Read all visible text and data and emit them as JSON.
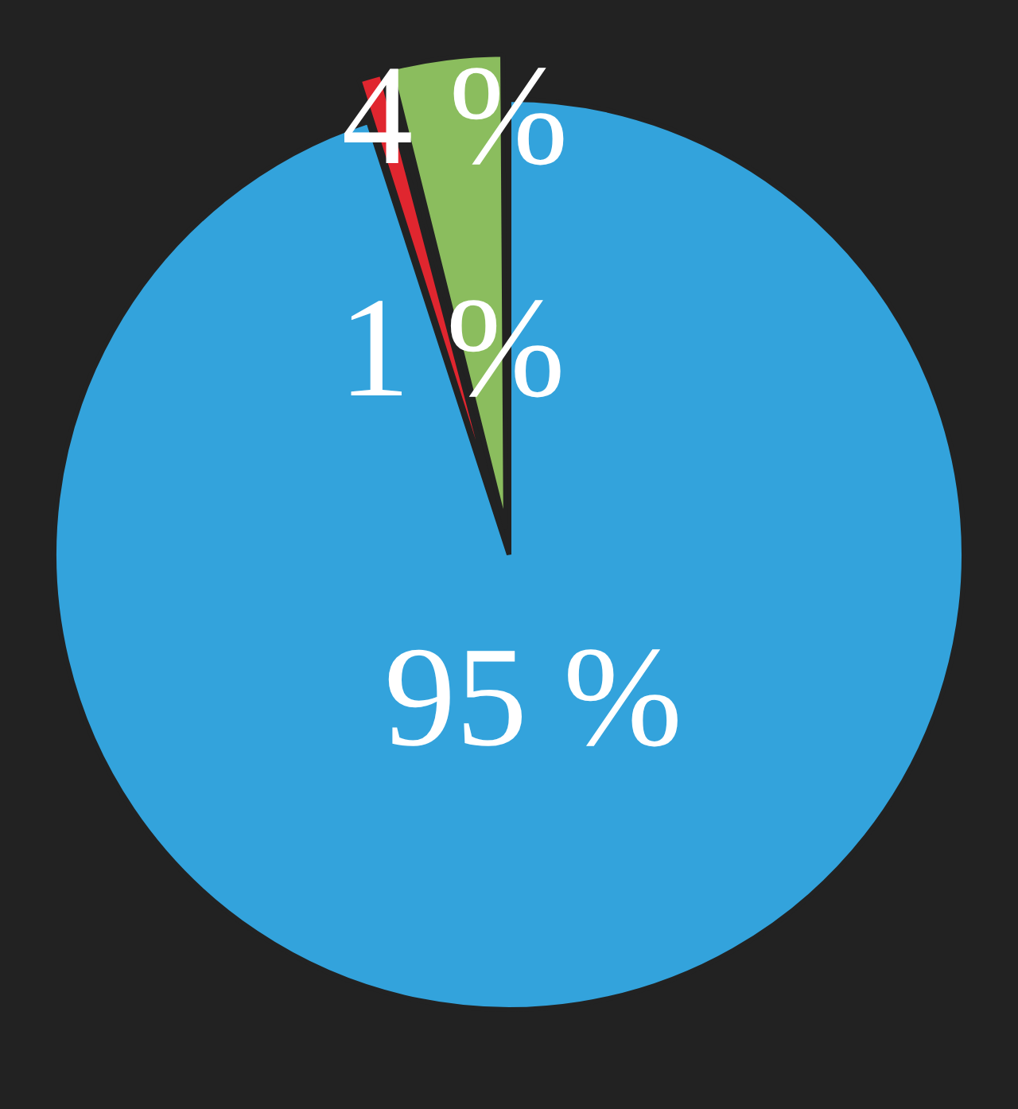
{
  "chart_data": {
    "type": "pie",
    "categories": [
      null,
      null,
      null
    ],
    "values": [
      95,
      1,
      4
    ],
    "colors": [
      "#33a3dc",
      "#e0262f",
      "#8bbd5e"
    ],
    "value_labels": [
      "95 %",
      "1 %",
      "4 %"
    ],
    "legend": false
  }
}
